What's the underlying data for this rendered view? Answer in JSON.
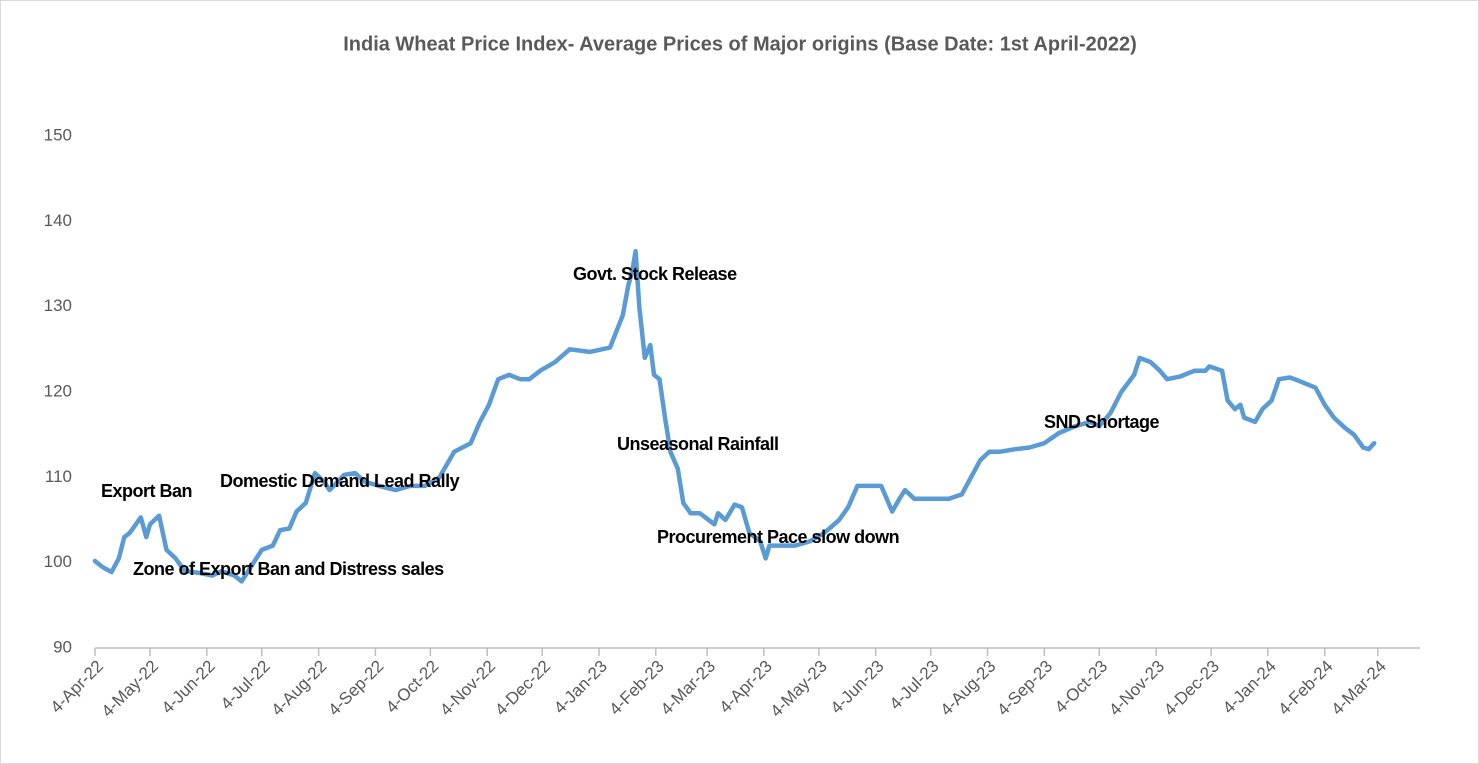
{
  "chart_data": {
    "type": "line",
    "title": "India Wheat Price  Index- Average Prices of Major origins (Base Date: 1st April-2022)",
    "x": [
      "2022-04-04",
      "2022-04-08",
      "2022-04-13",
      "2022-04-17",
      "2022-04-20",
      "2022-04-23",
      "2022-04-29",
      "2022-05-02",
      "2022-05-04",
      "2022-05-09",
      "2022-05-13",
      "2022-05-18",
      "2022-05-23",
      "2022-05-31",
      "2022-06-07",
      "2022-06-12",
      "2022-06-19",
      "2022-06-23",
      "2022-06-28",
      "2022-07-04",
      "2022-07-10",
      "2022-07-14",
      "2022-07-19",
      "2022-07-23",
      "2022-07-28",
      "2022-08-02",
      "2022-08-07",
      "2022-08-10",
      "2022-08-18",
      "2022-08-24",
      "2022-08-29",
      "2022-09-06",
      "2022-09-15",
      "2022-09-23",
      "2022-10-01",
      "2022-10-09",
      "2022-10-17",
      "2022-10-26",
      "2022-10-31",
      "2022-11-05",
      "2022-11-10",
      "2022-11-16",
      "2022-11-22",
      "2022-11-27",
      "2022-12-03",
      "2022-12-11",
      "2022-12-19",
      "2022-12-30",
      "2023-01-10",
      "2023-01-17",
      "2023-01-20",
      "2023-01-22",
      "2023-01-24",
      "2023-01-26",
      "2023-01-29",
      "2023-02-01",
      "2023-02-03",
      "2023-02-06",
      "2023-02-09",
      "2023-02-12",
      "2023-02-16",
      "2023-02-19",
      "2023-02-23",
      "2023-02-28",
      "2023-03-08",
      "2023-03-10",
      "2023-03-14",
      "2023-03-19",
      "2023-03-23",
      "2023-03-27",
      "2023-04-02",
      "2023-04-05",
      "2023-04-07",
      "2023-04-13",
      "2023-04-21",
      "2023-04-29",
      "2023-05-07",
      "2023-05-15",
      "2023-05-20",
      "2023-05-25",
      "2023-06-01",
      "2023-06-07",
      "2023-06-13",
      "2023-06-17",
      "2023-06-20",
      "2023-06-25",
      "2023-07-06",
      "2023-07-14",
      "2023-07-21",
      "2023-07-26",
      "2023-07-31",
      "2023-08-05",
      "2023-08-11",
      "2023-08-19",
      "2023-08-27",
      "2023-09-04",
      "2023-09-12",
      "2023-09-21",
      "2023-09-29",
      "2023-10-04",
      "2023-10-10",
      "2023-10-16",
      "2023-10-23",
      "2023-10-26",
      "2023-11-01",
      "2023-11-06",
      "2023-11-10",
      "2023-11-17",
      "2023-11-25",
      "2023-12-01",
      "2023-12-03",
      "2023-12-10",
      "2023-12-13",
      "2023-12-17",
      "2023-12-20",
      "2023-12-22",
      "2023-12-28",
      "2024-01-01",
      "2024-01-06",
      "2024-01-10",
      "2024-01-16",
      "2024-01-21",
      "2024-01-30",
      "2024-02-04",
      "2024-02-09",
      "2024-02-15",
      "2024-02-20",
      "2024-02-25",
      "2024-02-28",
      "2024-03-02"
    ],
    "series": [
      {
        "name": "India Wheat Price Index",
        "color": "#5b9bd5",
        "values": [
          100.2,
          99.5,
          98.9,
          100.5,
          103,
          103.5,
          105.3,
          103,
          104.5,
          105.5,
          101.5,
          100.5,
          99,
          98.8,
          98.5,
          99,
          98.5,
          97.8,
          99.5,
          101.5,
          102,
          103.8,
          104,
          106,
          107,
          110.5,
          109.5,
          108.5,
          110.3,
          110.5,
          109.5,
          109,
          108.5,
          109,
          109,
          110,
          113,
          114,
          116.5,
          118.5,
          121.5,
          122,
          121.5,
          121.5,
          122.5,
          123.5,
          125,
          124.7,
          125.2,
          129,
          132.5,
          134,
          136.5,
          130,
          124,
          125.5,
          122,
          121.5,
          117,
          113,
          111,
          107,
          105.8,
          105.8,
          104.5,
          105.8,
          105,
          106.8,
          106.5,
          103.5,
          102.5,
          100.5,
          102,
          102,
          102,
          102.5,
          103.5,
          105,
          106.5,
          109,
          109,
          109,
          106,
          107.5,
          108.5,
          107.5,
          107.5,
          107.5,
          108,
          110,
          112,
          113,
          113,
          113.3,
          113.5,
          114,
          115.2,
          116,
          116.5,
          116,
          117.5,
          120,
          122,
          124,
          123.5,
          122.5,
          121.5,
          121.8,
          122.5,
          122.5,
          123,
          122.5,
          119,
          118,
          118.5,
          117,
          116.5,
          118,
          119,
          121.5,
          121.7,
          121.3,
          120.5,
          118.5,
          117,
          115.8,
          115,
          113.5,
          113.3,
          114
        ]
      }
    ],
    "xlim": [
      "2022-04-04",
      "2024-03-27"
    ],
    "xticks": [
      {
        "value": "2022-04-04",
        "label": "4-Apr-22"
      },
      {
        "value": "2022-05-04",
        "label": "4-May-22"
      },
      {
        "value": "2022-06-04",
        "label": "4-Jun-22"
      },
      {
        "value": "2022-07-04",
        "label": "4-Jul-22"
      },
      {
        "value": "2022-08-04",
        "label": "4-Aug-22"
      },
      {
        "value": "2022-09-04",
        "label": "4-Sep-22"
      },
      {
        "value": "2022-10-04",
        "label": "4-Oct-22"
      },
      {
        "value": "2022-11-04",
        "label": "4-Nov-22"
      },
      {
        "value": "2022-12-04",
        "label": "4-Dec-22"
      },
      {
        "value": "2023-01-04",
        "label": "4-Jan-23"
      },
      {
        "value": "2023-02-04",
        "label": "4-Feb-23"
      },
      {
        "value": "2023-03-04",
        "label": "4-Mar-23"
      },
      {
        "value": "2023-04-04",
        "label": "4-Apr-23"
      },
      {
        "value": "2023-05-04",
        "label": "4-May-23"
      },
      {
        "value": "2023-06-04",
        "label": "4-Jun-23"
      },
      {
        "value": "2023-07-04",
        "label": "4-Jul-23"
      },
      {
        "value": "2023-08-04",
        "label": "4-Aug-23"
      },
      {
        "value": "2023-09-04",
        "label": "4-Sep-23"
      },
      {
        "value": "2023-10-04",
        "label": "4-Oct-23"
      },
      {
        "value": "2023-11-04",
        "label": "4-Nov-23"
      },
      {
        "value": "2023-12-04",
        "label": "4-Dec-23"
      },
      {
        "value": "2024-01-04",
        "label": "4-Jan-24"
      },
      {
        "value": "2024-02-04",
        "label": "4-Feb-24"
      },
      {
        "value": "2024-03-04",
        "label": "4-Mar-24"
      }
    ],
    "ylim": [
      90,
      150
    ],
    "yticks": [
      90,
      100,
      110,
      120,
      130,
      140,
      150
    ],
    "grid": false,
    "annotations": [
      "Export Ban",
      "Zone of Export Ban and Distress sales",
      "Domestic Demand Lead Rally",
      "Govt. Stock Release",
      "Unseasonal Rainfall",
      "Procurement Pace slow down",
      "SND Shortage"
    ]
  }
}
